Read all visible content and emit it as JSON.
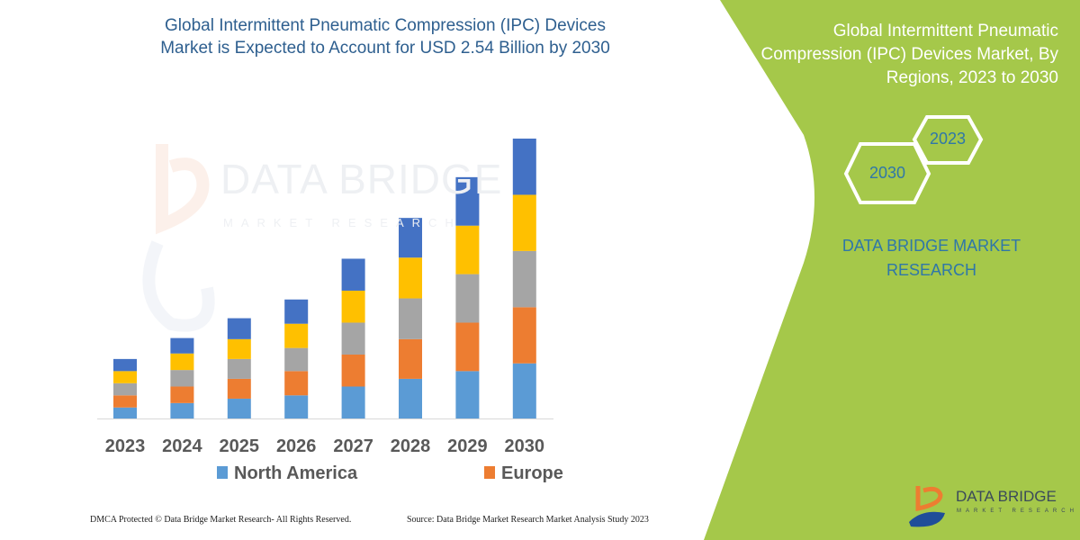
{
  "title": {
    "line1": "Global Intermittent Pneumatic Compression (IPC) Devices",
    "line2": "Market is Expected to Account for USD 2.54 Billion by 2030"
  },
  "side_panel": {
    "title_line1": "Global Intermittent Pneumatic",
    "title_line2": "Compression (IPC) Devices Market, By",
    "title_line3": "Regions, 2023 to 2030",
    "hex_start": "2023",
    "hex_end": "2030",
    "brand_line1": "DATA BRIDGE MARKET",
    "brand_line2": "RESEARCH",
    "panel_color": "#a5c84a"
  },
  "logo": {
    "name": "DATA BRIDGE",
    "tagline": "MARKET RESEARCH"
  },
  "watermark": {
    "name": "DATA BRIDGE",
    "tagline": "MARKET RESEARCH"
  },
  "footer": {
    "left": "DMCA Protected © Data Bridge Market Research-  All Rights Reserved.",
    "right": "Source: Data Bridge Market Research  Market Analysis Study 2023"
  },
  "chart_data": {
    "type": "bar",
    "stacked": true,
    "title": "",
    "xlabel": "",
    "ylabel": "",
    "grid": false,
    "legend_position": "bottom",
    "categories": [
      "2023",
      "2024",
      "2025",
      "2026",
      "2027",
      "2028",
      "2029",
      "2030"
    ],
    "ylim": [
      0,
      2.6
    ],
    "series": [
      {
        "name": "North America",
        "color": "#5b9bd5",
        "values": [
          0.1,
          0.14,
          0.18,
          0.21,
          0.29,
          0.36,
          0.43,
          0.5
        ]
      },
      {
        "name": "Europe",
        "color": "#ed7d31",
        "values": [
          0.11,
          0.15,
          0.18,
          0.22,
          0.29,
          0.36,
          0.44,
          0.51
        ]
      },
      {
        "color": "#a5a5a5",
        "values": [
          0.11,
          0.15,
          0.18,
          0.21,
          0.29,
          0.37,
          0.44,
          0.51
        ]
      },
      {
        "color": "#ffc000",
        "values": [
          0.11,
          0.15,
          0.18,
          0.22,
          0.29,
          0.37,
          0.44,
          0.51
        ]
      },
      {
        "color": "#4472c4",
        "values": [
          0.11,
          0.14,
          0.19,
          0.22,
          0.29,
          0.36,
          0.44,
          0.51
        ]
      }
    ]
  }
}
